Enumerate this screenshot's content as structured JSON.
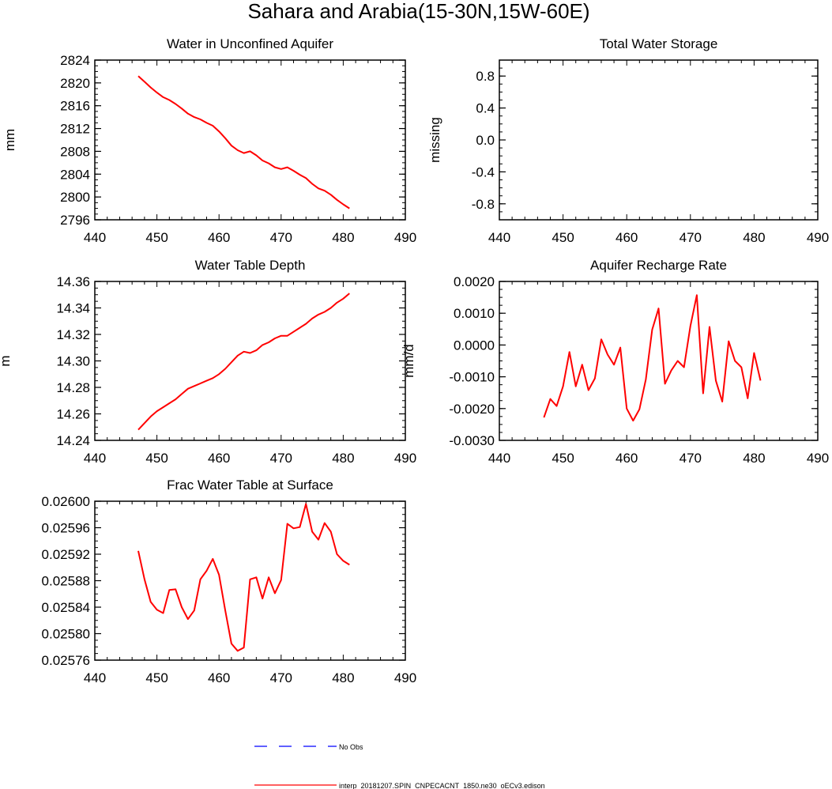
{
  "page_title": "Sahara and Arabia(15-30N,15W-60E)",
  "legend": {
    "obs_label": "No Obs",
    "model_label": "interp_20181207.SPIN_CNPECACNT_1850.ne30_oECv3.edison",
    "obs_color": "#0000ff",
    "model_color": "#ff0000"
  },
  "chart_data": [
    {
      "type": "line",
      "title": "Water in Unconfined Aquifer",
      "xlabel": "",
      "ylabel": "mm",
      "xlim": [
        440,
        490
      ],
      "ylim": [
        2796,
        2824
      ],
      "xticks": [
        440,
        450,
        460,
        470,
        480,
        490
      ],
      "yticks": [
        2796,
        2800,
        2804,
        2808,
        2812,
        2816,
        2820,
        2824
      ],
      "ytick_labels": [
        "2796",
        "2800",
        "2804",
        "2808",
        "2812",
        "2816",
        "2820",
        "2824"
      ],
      "series": [
        {
          "name": "interp_20181207.SPIN_CNPECACNT_1850.ne30_oECv3.edison",
          "color": "#ff0000",
          "x": [
            447,
            448,
            449,
            450,
            451,
            452,
            453,
            454,
            455,
            456,
            457,
            458,
            459,
            460,
            461,
            462,
            463,
            464,
            465,
            466,
            467,
            468,
            469,
            470,
            471,
            472,
            473,
            474,
            475,
            476,
            477,
            478,
            479,
            480,
            481
          ],
          "y": [
            2821.2,
            2820.2,
            2819.2,
            2818.3,
            2817.5,
            2817.0,
            2816.3,
            2815.5,
            2814.6,
            2814.0,
            2813.6,
            2813.0,
            2812.5,
            2811.5,
            2810.3,
            2809.0,
            2808.2,
            2807.7,
            2808.0,
            2807.3,
            2806.4,
            2805.9,
            2805.2,
            2804.9,
            2805.2,
            2804.6,
            2803.9,
            2803.3,
            2802.3,
            2801.5,
            2801.1,
            2800.4,
            2799.5,
            2798.7,
            2798.0
          ]
        }
      ]
    },
    {
      "type": "line",
      "title": "Total Water Storage",
      "xlabel": "",
      "ylabel": "missing",
      "xlim": [
        440,
        490
      ],
      "ylim": [
        -1,
        1
      ],
      "xticks": [
        440,
        450,
        460,
        470,
        480,
        490
      ],
      "yticks": [
        -0.8,
        -0.4,
        0.0,
        0.4,
        0.8
      ],
      "ytick_labels": [
        "-0.8",
        "-0.4",
        "0.0",
        "0.4",
        "0.8"
      ],
      "series": []
    },
    {
      "type": "line",
      "title": "Water Table Depth",
      "xlabel": "",
      "ylabel": "m",
      "xlim": [
        440,
        490
      ],
      "ylim": [
        14.24,
        14.36
      ],
      "xticks": [
        440,
        450,
        460,
        470,
        480,
        490
      ],
      "yticks": [
        14.24,
        14.26,
        14.28,
        14.3,
        14.32,
        14.34,
        14.36
      ],
      "ytick_labels": [
        "14.24",
        "14.26",
        "14.28",
        "14.30",
        "14.32",
        "14.34",
        "14.36"
      ],
      "series": [
        {
          "name": "interp_20181207.SPIN_CNPECACNT_1850.ne30_oECv3.edison",
          "color": "#ff0000",
          "x": [
            447,
            448,
            449,
            450,
            451,
            452,
            453,
            454,
            455,
            456,
            457,
            458,
            459,
            460,
            461,
            462,
            463,
            464,
            465,
            466,
            467,
            468,
            469,
            470,
            471,
            472,
            473,
            474,
            475,
            476,
            477,
            478,
            479,
            480,
            481
          ],
          "y": [
            14.248,
            14.253,
            14.258,
            14.262,
            14.265,
            14.268,
            14.271,
            14.275,
            14.279,
            14.281,
            14.283,
            14.285,
            14.287,
            14.29,
            14.294,
            14.299,
            14.304,
            14.307,
            14.306,
            14.308,
            14.312,
            14.314,
            14.317,
            14.319,
            14.319,
            14.322,
            14.325,
            14.328,
            14.332,
            14.335,
            14.337,
            14.34,
            14.344,
            14.347,
            14.351
          ]
        }
      ]
    },
    {
      "type": "line",
      "title": "Aquifer Recharge Rate",
      "xlabel": "",
      "ylabel": "mm/d",
      "xlim": [
        440,
        490
      ],
      "ylim": [
        -0.003,
        0.002
      ],
      "xticks": [
        440,
        450,
        460,
        470,
        480,
        490
      ],
      "yticks": [
        -0.003,
        -0.002,
        -0.001,
        0.0,
        0.001,
        0.002
      ],
      "ytick_labels": [
        "-0.0030",
        "-0.0020",
        "-0.0010",
        "0.0000",
        "0.0010",
        "0.0020"
      ],
      "series": [
        {
          "name": "interp_20181207.SPIN_CNPECACNT_1850.ne30_oECv3.edison",
          "color": "#ff0000",
          "x": [
            447,
            448,
            449,
            450,
            451,
            452,
            453,
            454,
            455,
            456,
            457,
            458,
            459,
            460,
            461,
            462,
            463,
            464,
            465,
            466,
            467,
            468,
            469,
            470,
            471,
            472,
            473,
            474,
            475,
            476,
            477,
            478,
            479,
            480,
            481
          ],
          "y": [
            -0.00228,
            -0.0017,
            -0.00192,
            -0.0013,
            -0.00022,
            -0.0013,
            -0.00062,
            -0.00142,
            -0.00105,
            0.00018,
            -0.0003,
            -0.00062,
            -8e-05,
            -0.002,
            -0.00238,
            -0.00202,
            -0.00108,
            0.00048,
            0.00115,
            -0.00122,
            -0.0008,
            -0.0005,
            -0.0007,
            0.0006,
            0.00157,
            -0.00152,
            0.00057,
            -0.00112,
            -0.00178,
            0.00012,
            -0.0005,
            -0.0007,
            -0.00168,
            -0.00025,
            -0.00112
          ]
        }
      ]
    },
    {
      "type": "line",
      "title": "Frac Water Table at Surface",
      "xlabel": "",
      "ylabel": "",
      "xlim": [
        440,
        490
      ],
      "ylim": [
        0.02576,
        0.026
      ],
      "xticks": [
        440,
        450,
        460,
        470,
        480,
        490
      ],
      "yticks": [
        0.02576,
        0.0258,
        0.02584,
        0.02588,
        0.02592,
        0.02596,
        0.026
      ],
      "ytick_labels": [
        "0.02576",
        "0.02580",
        "0.02584",
        "0.02588",
        "0.02592",
        "0.02596",
        "0.02600"
      ],
      "series": [
        {
          "name": "interp_20181207.SPIN_CNPECACNT_1850.ne30_oECv3.edison",
          "color": "#ff0000",
          "x": [
            447,
            448,
            449,
            450,
            451,
            452,
            453,
            454,
            455,
            456,
            457,
            458,
            459,
            460,
            461,
            462,
            463,
            464,
            465,
            466,
            467,
            468,
            469,
            470,
            471,
            472,
            473,
            474,
            475,
            476,
            477,
            478,
            479,
            480,
            481
          ],
          "y": [
            0.025925,
            0.025882,
            0.025848,
            0.025836,
            0.025831,
            0.025866,
            0.025867,
            0.02584,
            0.025822,
            0.025835,
            0.025882,
            0.025895,
            0.025913,
            0.025889,
            0.025835,
            0.025785,
            0.025774,
            0.025779,
            0.025882,
            0.025885,
            0.025853,
            0.025885,
            0.025861,
            0.025881,
            0.025966,
            0.025959,
            0.025961,
            0.025996,
            0.025954,
            0.025942,
            0.025967,
            0.025954,
            0.02592,
            0.02591,
            0.025904
          ]
        }
      ]
    }
  ]
}
